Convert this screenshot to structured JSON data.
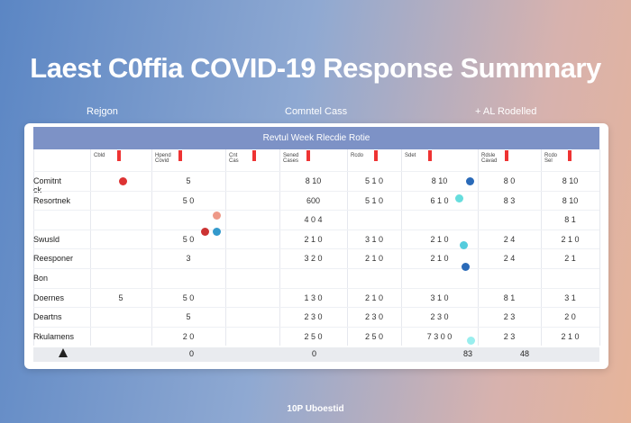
{
  "header": {
    "title": "Laest C0ffia COVID-19 Response Summnary",
    "subheaders": [
      "Rejgon",
      "Comntel Cass",
      "+ AL Rodelled"
    ]
  },
  "table": {
    "caption": "Revtul Week Rlecdie Rotie",
    "columns": [
      "Cbld",
      "Hpend Covid",
      "Cnt Cas",
      "Sened Cases",
      "Rcdo",
      "Sdet",
      "Rdsle Cavad",
      "Rcdo Sel"
    ],
    "rows": [
      {
        "label": "Comitnt ck",
        "cells": [
          null,
          "5",
          null,
          "8 10",
          "5 1 0",
          "8 10",
          "8 0",
          "8 10"
        ]
      },
      {
        "label": "Resortnek",
        "cells": [
          null,
          "5 0",
          null,
          "600",
          "5 1 0",
          "6 1 0",
          "8 3",
          "8 10"
        ]
      },
      {
        "label": null,
        "cells": [
          null,
          null,
          null,
          "4 0 4",
          null,
          null,
          null,
          "8 1"
        ]
      },
      {
        "label": "Swusld",
        "cells": [
          null,
          "5 0",
          null,
          "2 1 0",
          "3 1 0",
          "2 1 0",
          "2 4",
          "2 1 0"
        ]
      },
      {
        "label": "Reesponer",
        "cells": [
          null,
          "3",
          null,
          "3 2 0",
          "2 1 0",
          "2 1 0",
          "2 4",
          "2 1"
        ]
      },
      {
        "label": "Bon",
        "cells": [
          null,
          null,
          null,
          null,
          null,
          null,
          null,
          null
        ]
      },
      {
        "label": "Doernes",
        "cells": [
          "5",
          "5 0",
          null,
          "1 3 0",
          "2 1 0",
          "3 1 0",
          "8 1",
          "3 1"
        ]
      },
      {
        "label": "Deartns",
        "cells": [
          null,
          "5",
          null,
          "2 3 0",
          "2 3 0",
          "2 3 0",
          "2 3",
          "2 0"
        ]
      },
      {
        "label": "Rkulamens",
        "cells": [
          null,
          "2 0",
          null,
          "2 5 0",
          "2 5 0",
          "7 3 0 0",
          "2 3",
          "2 1 0"
        ]
      }
    ]
  },
  "bottom_bar": [
    "0",
    "0",
    "83",
    "48"
  ],
  "footer": "10P Uboestid"
}
